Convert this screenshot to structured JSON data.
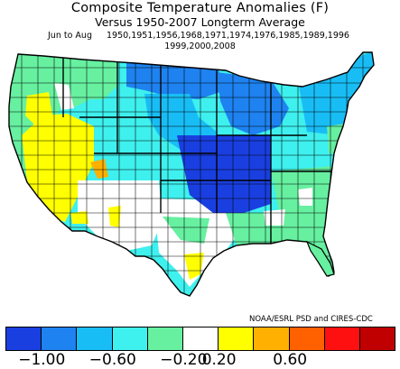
{
  "title": "Composite Temperature Anomalies (F)",
  "subtitle": "Versus 1950-2007 Longterm Average",
  "period": "Jun to Aug",
  "years_line1": "1950,1951,1956,1968,1971,1974,1976,1985,1989,1996",
  "years_line2": "1999,2000,2008",
  "credit": "NOAA/ESRL PSD and CIRES-CDC",
  "legend": {
    "colors": [
      "#1a3fe0",
      "#1e82f0",
      "#19bdf5",
      "#3ef0ee",
      "#66f0a0",
      "#ffffff",
      "#ffff00",
      "#ffb000",
      "#ff6000",
      "#ff1010",
      "#c00000"
    ],
    "labels": [
      "-1.00",
      "-0.60",
      "-0.20",
      "0.20",
      "0.60"
    ],
    "label_boundaries": [
      1,
      3,
      5,
      6,
      8
    ]
  },
  "regions": [
    {
      "name": "pacific-northwest",
      "anomaly_class": "0 to -0.2 (green)"
    },
    {
      "name": "california-nevada-interior",
      "anomaly_class": "0.2 to 0.4 (yellow)"
    },
    {
      "name": "utah-east",
      "anomaly_class": "0.4 to 0.6 (orange)"
    },
    {
      "name": "northern-rockies-plains",
      "anomaly_class": "-0.2 to -0.6 (cyan)"
    },
    {
      "name": "upper-midwest",
      "anomaly_class": "-0.6 to -1.0 (blue)"
    },
    {
      "name": "central-plains-midwest",
      "anomaly_class": "below -1.0 (dark blue)"
    },
    {
      "name": "southwest",
      "anomaly_class": "-0.2 to 0.2 (white)"
    },
    {
      "name": "south-texas",
      "anomaly_class": "0.2 to 0.4 (yellow)"
    },
    {
      "name": "southeast",
      "anomaly_class": "0 to -0.2 (green)"
    },
    {
      "name": "northeast",
      "anomaly_class": "-0.2 to -0.6 (cyan)"
    }
  ]
}
